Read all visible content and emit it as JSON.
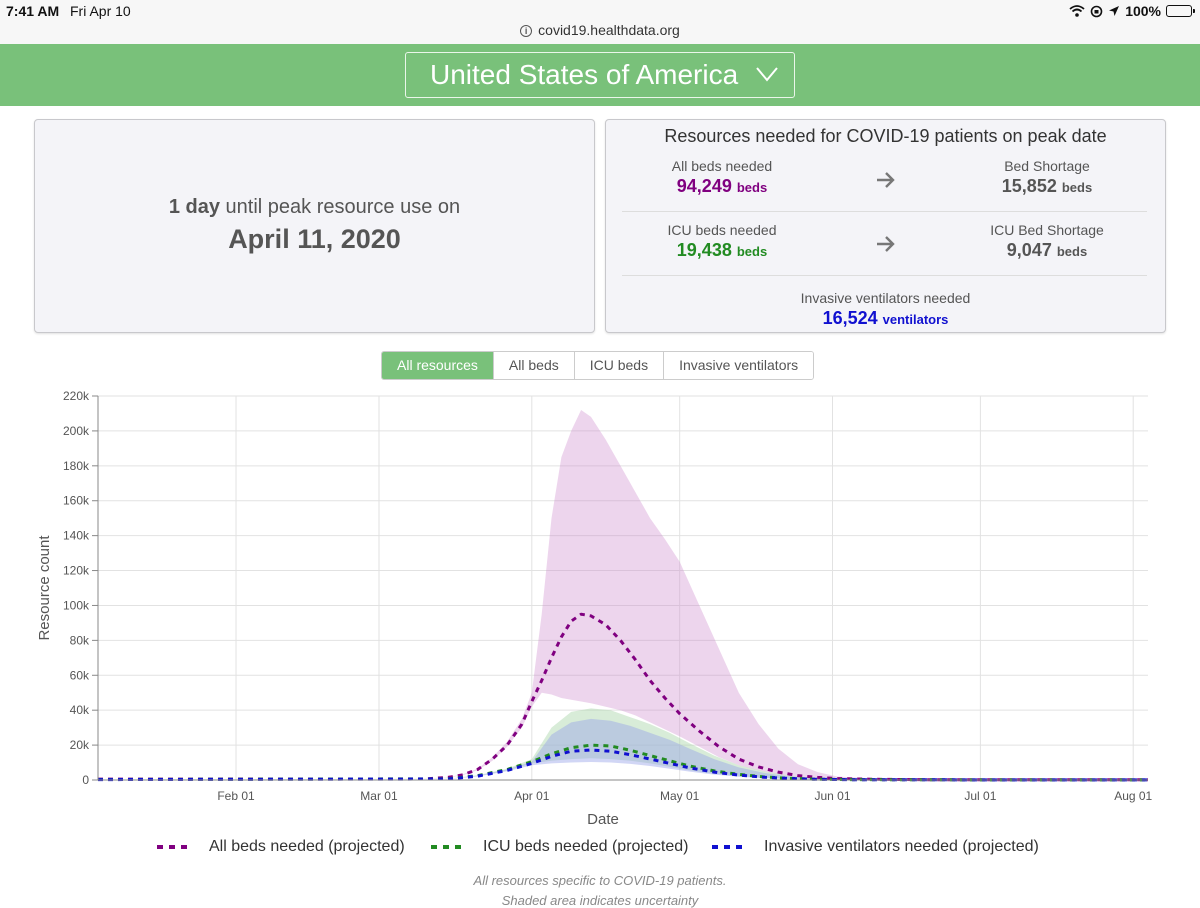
{
  "status_bar": {
    "time": "7:41 AM",
    "date": "Fri Apr 10",
    "battery": "100%"
  },
  "browser": {
    "url": "covid19.healthdata.org"
  },
  "header": {
    "country": "United States of America"
  },
  "peak_card": {
    "days": "1 day",
    "until_text": " until peak resource use on",
    "peak_date": "April 11, 2020"
  },
  "resources": {
    "title": "Resources needed for COVID-19 patients on peak date",
    "all_beds_label": "All beds needed",
    "all_beds_value": "94,249",
    "bed_shortage_label": "Bed Shortage",
    "bed_shortage_value": "15,852",
    "icu_beds_label": "ICU beds needed",
    "icu_beds_value": "19,438",
    "icu_shortage_label": "ICU Bed Shortage",
    "icu_shortage_value": "9,047",
    "vent_label": "Invasive ventilators needed",
    "vent_value": "16,524",
    "beds_unit": "beds",
    "vent_unit": "ventilators",
    "colors": {
      "all_beds": "#800080",
      "icu": "#228b22",
      "vent": "#1010d0",
      "neutral": "#555555"
    }
  },
  "tabs": [
    {
      "label": "All resources",
      "active": true
    },
    {
      "label": "All beds",
      "active": false
    },
    {
      "label": "ICU beds",
      "active": false
    },
    {
      "label": "Invasive ventilators",
      "active": false
    }
  ],
  "legend": [
    {
      "label": "All beds needed (projected)",
      "color": "#800080"
    },
    {
      "label": "ICU beds needed (projected)",
      "color": "#228b22"
    },
    {
      "label": "Invasive ventilators needed (projected)",
      "color": "#1010d0"
    }
  ],
  "footnote": "All resources specific to COVID-19 patients.",
  "footnote2": "Shaded area indicates uncertainty",
  "chart_data": {
    "type": "line",
    "xlabel": "Date",
    "ylabel": "Resource count",
    "x_ticks": [
      "Feb 01",
      "Mar 01",
      "Apr 01",
      "May 01",
      "Jun 01",
      "Jul 01",
      "Aug 01"
    ],
    "y_ticks": [
      "0",
      "20k",
      "40k",
      "60k",
      "80k",
      "100k",
      "120k",
      "140k",
      "160k",
      "180k",
      "200k",
      "220k"
    ],
    "ylim": [
      0,
      220000
    ],
    "x_start": "2020-01-04",
    "x_end": "2020-08-04",
    "legend_position": "bottom",
    "grid": true,
    "series": [
      {
        "name": "All beds needed (projected)",
        "color": "#800080",
        "band_color": "#cc88cc",
        "x": [
          "2020-01-04",
          "2020-03-10",
          "2020-03-15",
          "2020-03-18",
          "2020-03-21",
          "2020-03-24",
          "2020-03-27",
          "2020-03-30",
          "2020-04-01",
          "2020-04-03",
          "2020-04-05",
          "2020-04-07",
          "2020-04-09",
          "2020-04-11",
          "2020-04-13",
          "2020-04-16",
          "2020-04-19",
          "2020-04-22",
          "2020-04-25",
          "2020-04-28",
          "2020-05-01",
          "2020-05-05",
          "2020-05-09",
          "2020-05-13",
          "2020-05-17",
          "2020-05-21",
          "2020-05-25",
          "2020-05-29",
          "2020-06-02",
          "2020-06-10",
          "2020-06-20",
          "2020-08-04"
        ],
        "values": [
          500,
          600,
          1500,
          3000,
          6000,
          12000,
          20000,
          32000,
          45000,
          57000,
          70000,
          82000,
          91000,
          95000,
          94000,
          89000,
          80000,
          69000,
          57000,
          47000,
          38000,
          28000,
          19000,
          12000,
          7500,
          4500,
          2500,
          1500,
          800,
          400,
          200,
          100
        ],
        "lower": [
          500,
          600,
          1400,
          2800,
          5600,
          11000,
          19000,
          30000,
          42000,
          50000,
          49000,
          47000,
          46000,
          45000,
          44000,
          42000,
          40000,
          37000,
          33000,
          29000,
          25000,
          19000,
          13000,
          8500,
          5500,
          3200,
          1800,
          1000,
          600,
          300,
          150,
          100
        ],
        "upper": [
          500,
          600,
          1600,
          3200,
          6500,
          13000,
          22000,
          35000,
          50000,
          95000,
          150000,
          185000,
          200000,
          212000,
          208000,
          195000,
          180000,
          165000,
          150000,
          138000,
          125000,
          100000,
          75000,
          50000,
          32000,
          18000,
          9000,
          4500,
          2000,
          800,
          300,
          100
        ]
      },
      {
        "name": "ICU beds needed (projected)",
        "color": "#228b22",
        "band_color": "#a8d5a8",
        "x": [
          "2020-01-04",
          "2020-03-15",
          "2020-03-21",
          "2020-03-27",
          "2020-04-01",
          "2020-04-05",
          "2020-04-09",
          "2020-04-13",
          "2020-04-17",
          "2020-04-21",
          "2020-04-25",
          "2020-04-29",
          "2020-05-03",
          "2020-05-08",
          "2020-05-13",
          "2020-05-18",
          "2020-05-23",
          "2020-05-28",
          "2020-06-05",
          "2020-06-20",
          "2020-08-04"
        ],
        "values": [
          300,
          700,
          2500,
          6000,
          10500,
          15000,
          18500,
          20000,
          19500,
          17000,
          14000,
          11000,
          8000,
          5200,
          3200,
          1800,
          1000,
          500,
          250,
          100,
          50
        ],
        "lower": [
          300,
          650,
          2300,
          5500,
          9500,
          11000,
          12000,
          12500,
          12000,
          11000,
          9500,
          7500,
          5500,
          3600,
          2200,
          1300,
          700,
          350,
          180,
          80,
          50
        ],
        "upper": [
          300,
          750,
          2700,
          6500,
          12000,
          30000,
          39000,
          41000,
          40000,
          36000,
          32000,
          27000,
          21000,
          14000,
          8500,
          5000,
          2600,
          1200,
          500,
          150,
          50
        ]
      },
      {
        "name": "Invasive ventilators needed (projected)",
        "color": "#1010d0",
        "band_color": "#9aa4e8",
        "x": [
          "2020-01-04",
          "2020-03-15",
          "2020-03-21",
          "2020-03-27",
          "2020-04-01",
          "2020-04-05",
          "2020-04-09",
          "2020-04-13",
          "2020-04-17",
          "2020-04-21",
          "2020-04-25",
          "2020-04-29",
          "2020-05-03",
          "2020-05-08",
          "2020-05-13",
          "2020-05-18",
          "2020-05-23",
          "2020-05-28",
          "2020-06-05",
          "2020-06-20",
          "2020-08-04"
        ],
        "values": [
          250,
          600,
          2200,
          5500,
          9500,
          13500,
          16500,
          17200,
          16500,
          14500,
          12000,
          9500,
          7000,
          4500,
          2800,
          1600,
          900,
          450,
          200,
          90,
          40
        ],
        "lower": [
          250,
          550,
          2000,
          5000,
          8500,
          9500,
          10000,
          10300,
          10000,
          9200,
          8000,
          6400,
          4800,
          3100,
          1900,
          1100,
          600,
          300,
          150,
          70,
          40
        ],
        "upper": [
          250,
          650,
          2400,
          6000,
          10500,
          26000,
          33000,
          35000,
          34000,
          31000,
          27000,
          23000,
          18000,
          12000,
          7200,
          4200,
          2200,
          1000,
          400,
          130,
          40
        ]
      }
    ]
  }
}
